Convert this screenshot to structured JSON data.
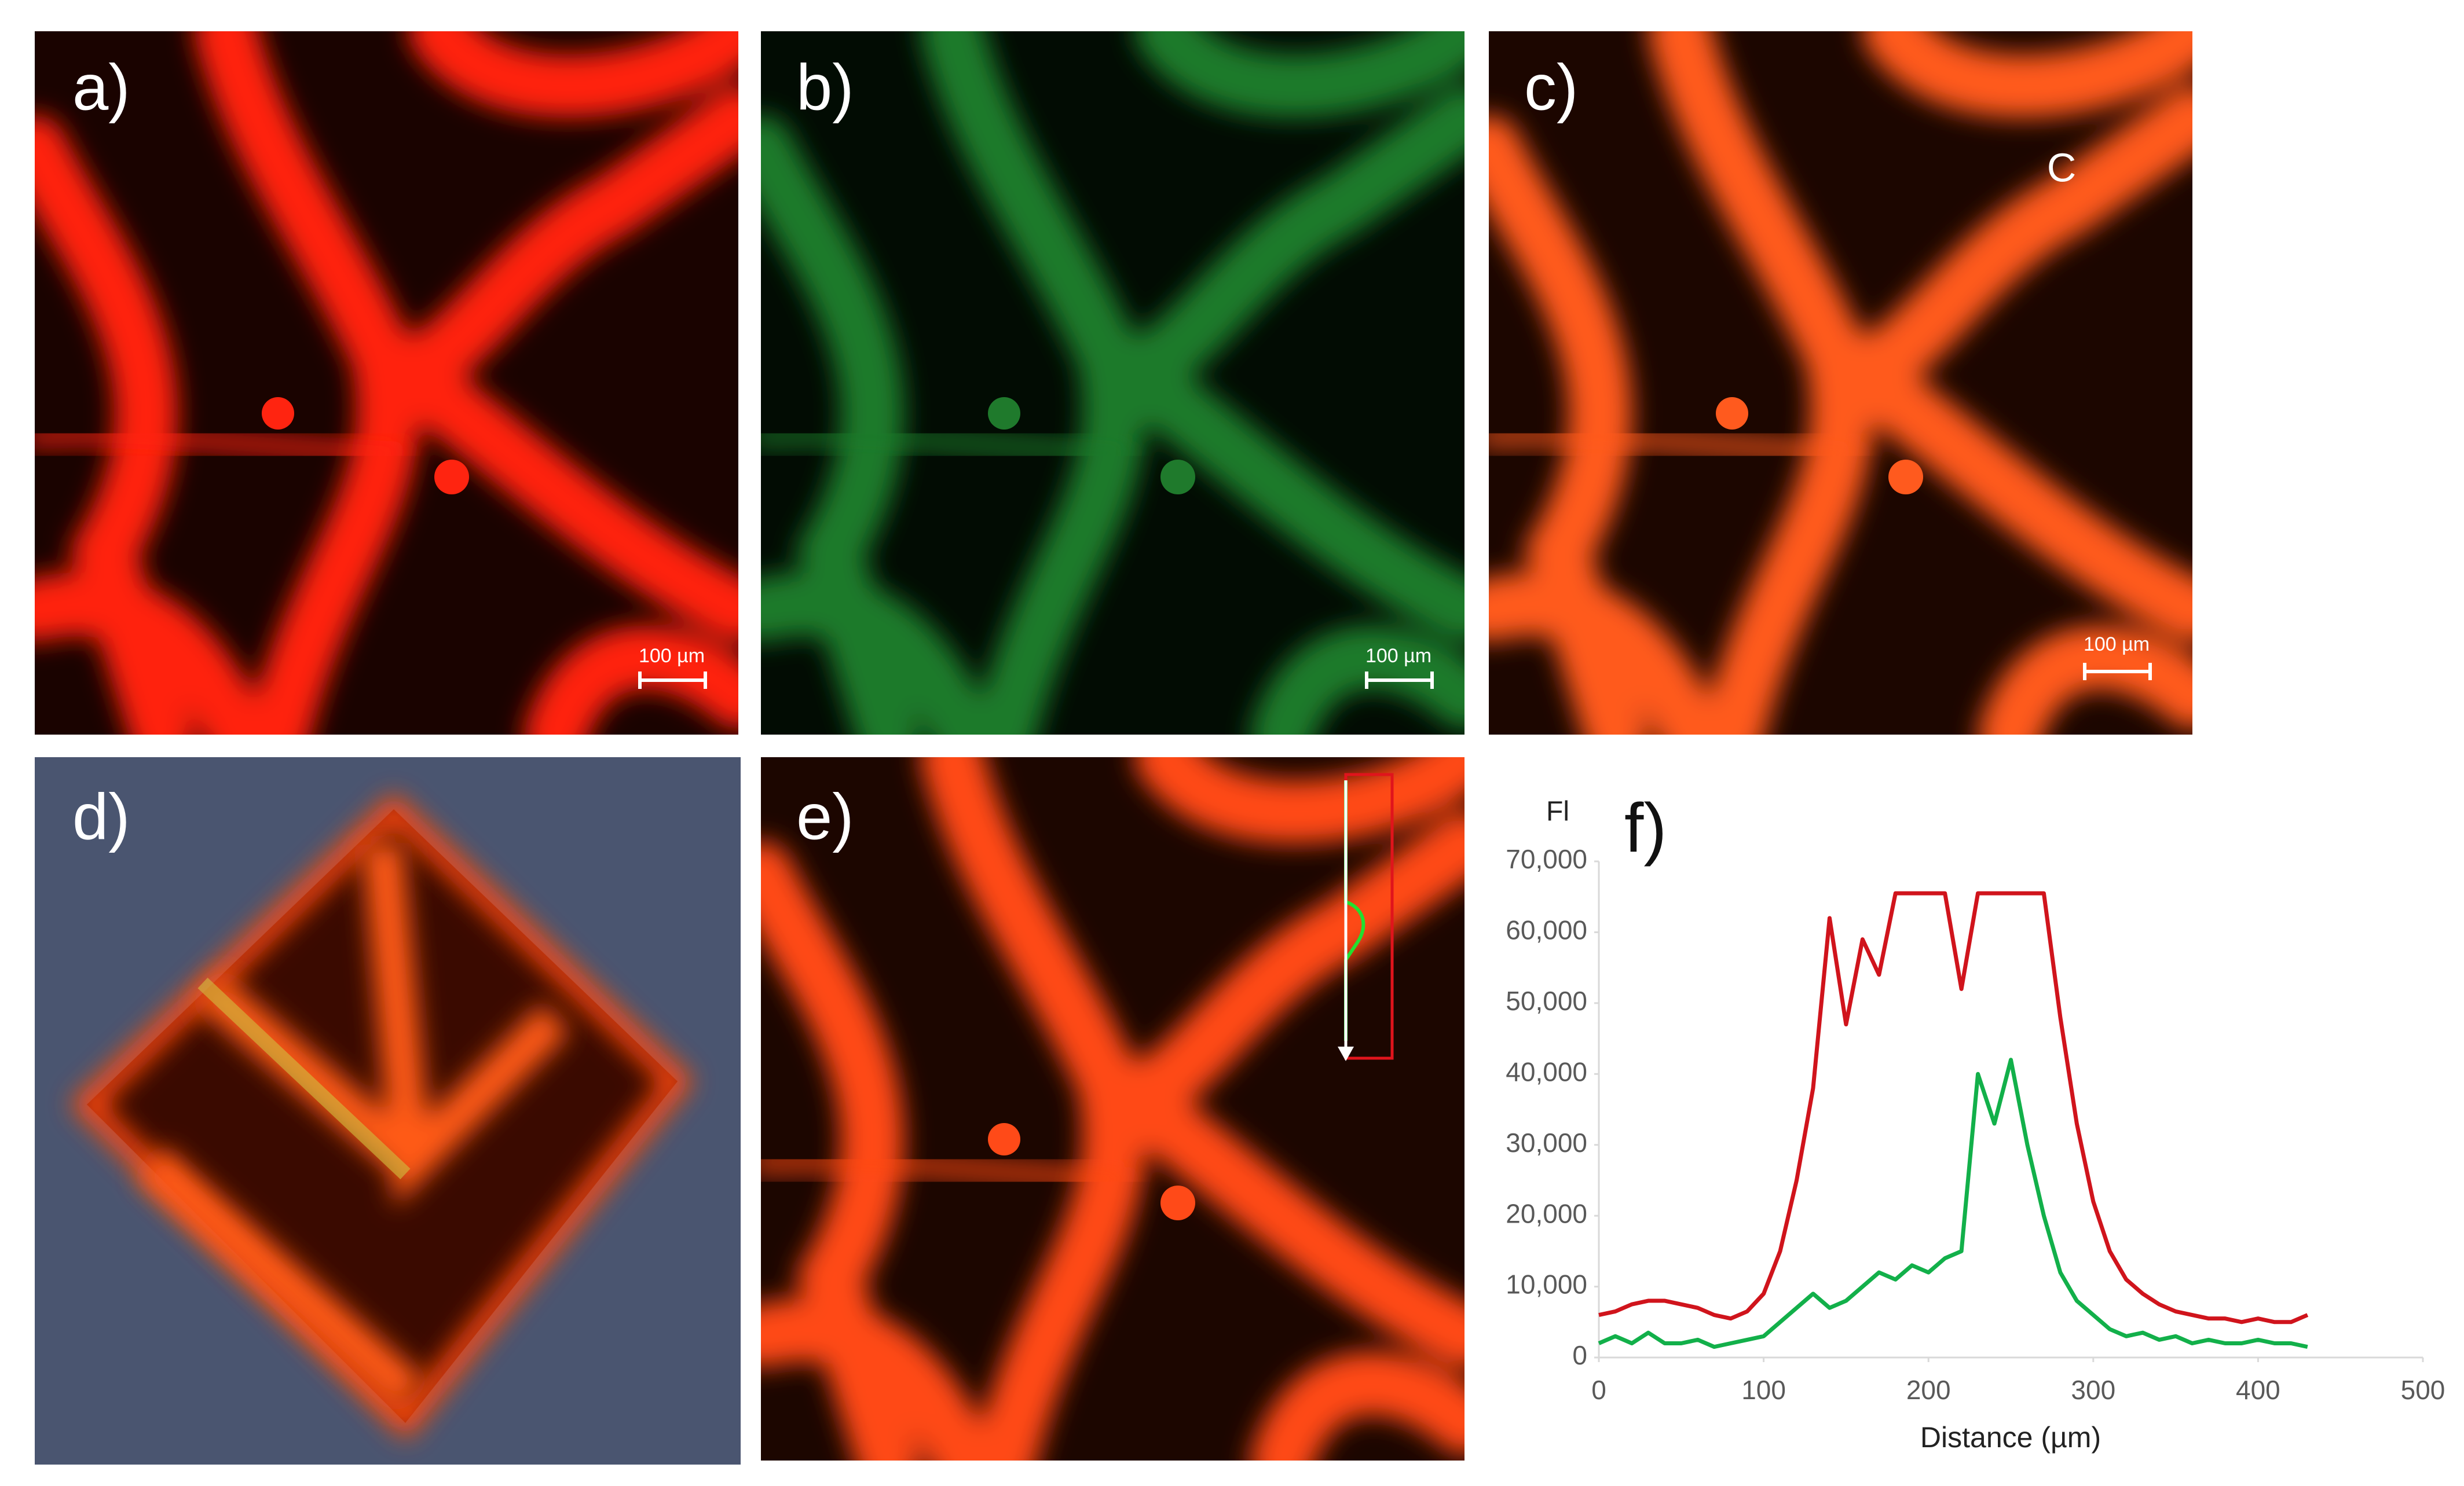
{
  "panels": [
    {
      "label": "a)",
      "scale_bar": "100 µm"
    },
    {
      "label": "b)",
      "scale_bar": "100 µm"
    },
    {
      "label": "c)",
      "scale_bar": "100 µm",
      "annotation": "C"
    },
    {
      "label": "d)"
    },
    {
      "label": "e)"
    }
  ],
  "chart_data": {
    "type": "line",
    "title": "f)",
    "y_label": "Fl",
    "x_label": "Distance (µm)",
    "x": [
      0,
      10,
      20,
      30,
      40,
      50,
      60,
      70,
      80,
      90,
      100,
      110,
      120,
      130,
      140,
      150,
      160,
      170,
      180,
      190,
      200,
      210,
      220,
      230,
      240,
      250,
      260,
      270,
      280,
      290,
      300,
      310,
      320,
      330,
      340,
      350,
      360,
      370,
      380,
      390,
      400,
      410,
      420,
      430
    ],
    "series": [
      {
        "color": "#d0141c",
        "values": [
          6000,
          6500,
          7500,
          8000,
          8000,
          7500,
          7000,
          6000,
          5500,
          6500,
          9000,
          15000,
          25000,
          38000,
          62000,
          47000,
          59000,
          54000,
          65500,
          65500,
          65500,
          65500,
          52000,
          65500,
          65500,
          65500,
          65500,
          65500,
          48000,
          33000,
          22000,
          15000,
          11000,
          9000,
          7500,
          6500,
          6000,
          5500,
          5500,
          5000,
          5500,
          5000,
          5000,
          6000
        ]
      },
      {
        "color": "#12b04a",
        "values": [
          2000,
          3000,
          2000,
          3500,
          2000,
          2000,
          2500,
          1500,
          2000,
          2500,
          3000,
          5000,
          7000,
          9000,
          7000,
          8000,
          10000,
          12000,
          11000,
          13000,
          12000,
          14000,
          15000,
          40000,
          33000,
          42000,
          30000,
          20000,
          12000,
          8000,
          6000,
          4000,
          3000,
          3500,
          2500,
          3000,
          2000,
          2500,
          2000,
          2000,
          2500,
          2000,
          2000,
          1500
        ]
      }
    ],
    "xlim": [
      0,
      500
    ],
    "xticks": [
      0,
      100,
      200,
      300,
      400,
      500
    ],
    "ylim": [
      0,
      70000
    ],
    "yticks": [
      0,
      {
        "value": 10000,
        "label": "10,000"
      },
      {
        "value": 20000,
        "label": "20,000"
      },
      {
        "value": 30000,
        "label": "30,000"
      },
      {
        "value": 40000,
        "label": "40,000"
      },
      {
        "value": 50000,
        "label": "50,000"
      },
      {
        "value": 60000,
        "label": "60,000"
      },
      {
        "value": 70000,
        "label": "70,000"
      }
    ]
  }
}
